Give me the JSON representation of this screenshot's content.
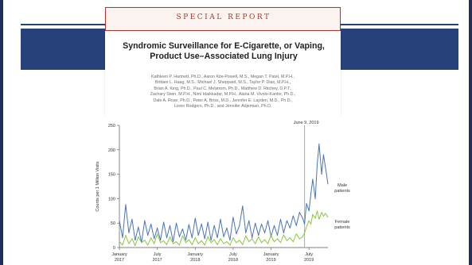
{
  "colors": {
    "slide_band": "#27417a",
    "slide_border": "#1f2f5c",
    "report_accent": "#b8332a",
    "male_series": "#4a73b8",
    "female_series": "#8cc63f",
    "reference_line": "#aaaaaa"
  },
  "article": {
    "section_label": "SPECIAL REPORT",
    "title_line1": "Syndromic Surveillance for E-Cigarette, or Vaping,",
    "title_line2": "Product Use–Associated Lung Injury",
    "authors": [
      "Kathleen P. Hartnett, Ph.D., Aaron Kite-Powell, M.S., Megan T. Patel, M.P.H.,",
      "Brittani L. Haag, M.S., Michael J. Sheppard, M.S., Taylor P. Dias, M.P.H.,",
      "Brian A. King, Ph.D., Paul C. Melstrom, Ph.D., Matthew D. Ritchey, D.P.T.,",
      "Zachary Stein, M.P.H., Nimi Idaikkadar, M.P.H., Alana M. Vivolo-Kantor, Ph.D.,",
      "Dale A. Rose, Ph.D., Peter A. Briss, M.D., Jennifer E. Layden, M.D., Ph.D.,",
      "Loren Rodgers, Ph.D., and Jennifer Adjemian, Ph.D."
    ]
  },
  "chart_data": {
    "type": "line",
    "title": "",
    "xlabel": "",
    "ylabel": "Counts per 1 Million Visits",
    "ylim": [
      0,
      250
    ],
    "yticks": [
      0,
      50,
      100,
      150,
      200,
      250
    ],
    "xlim": [
      0,
      33
    ],
    "x_unit": "months since January 2017",
    "xticks": [
      {
        "x": 0,
        "label1": "January",
        "label2": "2017"
      },
      {
        "x": 6,
        "label1": "July",
        "label2": "2017"
      },
      {
        "x": 12,
        "label1": "January",
        "label2": "2018"
      },
      {
        "x": 18,
        "label1": "July",
        "label2": "2018"
      },
      {
        "x": 24,
        "label1": "January",
        "label2": "2019"
      },
      {
        "x": 30,
        "label1": "July",
        "label2": "2019"
      }
    ],
    "reference_line": {
      "x": 29.3,
      "label": "June 9, 2019"
    },
    "grid": false,
    "series": [
      {
        "name": "Male patients",
        "label_line1": "Male",
        "label_line2": "patients",
        "x": [
          0,
          0.5,
          1,
          1.5,
          2,
          2.5,
          3,
          3.5,
          4,
          4.5,
          5,
          5.5,
          6,
          6.5,
          7,
          7.5,
          8,
          8.5,
          9,
          9.5,
          10,
          10.5,
          11,
          11.5,
          12,
          12.5,
          13,
          13.5,
          14,
          14.5,
          15,
          15.5,
          16,
          16.5,
          17,
          17.5,
          18,
          18.5,
          19,
          19.5,
          20,
          20.5,
          21,
          21.5,
          22,
          22.5,
          23,
          23.5,
          24,
          24.5,
          25,
          25.5,
          26,
          26.5,
          27,
          27.5,
          28,
          28.5,
          29,
          29.3,
          29.6,
          30,
          30.3,
          30.6,
          31,
          31.3,
          31.6,
          32,
          32.3,
          32.6,
          33
        ],
        "y": [
          55,
          20,
          88,
          30,
          58,
          15,
          42,
          10,
          55,
          25,
          48,
          18,
          40,
          15,
          52,
          20,
          45,
          12,
          50,
          22,
          38,
          15,
          47,
          20,
          60,
          25,
          48,
          18,
          52,
          15,
          45,
          20,
          58,
          22,
          40,
          15,
          62,
          28,
          45,
          85,
          30,
          55,
          20,
          50,
          25,
          48,
          30,
          55,
          22,
          45,
          25,
          58,
          30,
          55,
          40,
          65,
          45,
          72,
          60,
          48,
          90,
          75,
          110,
          140,
          100,
          170,
          212,
          150,
          190,
          165,
          130
        ]
      },
      {
        "name": "Female patients",
        "label_line1": "Female",
        "label_line2": "patients",
        "x": [
          0,
          0.5,
          1,
          1.5,
          2,
          2.5,
          3,
          3.5,
          4,
          4.5,
          5,
          5.5,
          6,
          6.5,
          7,
          7.5,
          8,
          8.5,
          9,
          9.5,
          10,
          10.5,
          11,
          11.5,
          12,
          12.5,
          13,
          13.5,
          14,
          14.5,
          15,
          15.5,
          16,
          16.5,
          17,
          17.5,
          18,
          18.5,
          19,
          19.5,
          20,
          20.5,
          21,
          21.5,
          22,
          22.5,
          23,
          23.5,
          24,
          24.5,
          25,
          25.5,
          26,
          26.5,
          27,
          27.5,
          28,
          28.5,
          29,
          29.3,
          29.6,
          30,
          30.3,
          30.6,
          31,
          31.3,
          31.6,
          32,
          32.3,
          32.6,
          33
        ],
        "y": [
          12,
          5,
          25,
          8,
          18,
          4,
          22,
          10,
          15,
          5,
          20,
          8,
          28,
          10,
          14,
          6,
          22,
          8,
          12,
          5,
          24,
          10,
          16,
          6,
          20,
          8,
          14,
          5,
          22,
          10,
          16,
          6,
          18,
          8,
          12,
          5,
          20,
          10,
          15,
          6,
          24,
          12,
          18,
          8,
          22,
          10,
          16,
          8,
          25,
          12,
          18,
          10,
          26,
          14,
          20,
          12,
          28,
          18,
          22,
          30,
          42,
          55,
          48,
          68,
          60,
          75,
          58,
          72,
          64,
          70,
          62
        ]
      }
    ]
  }
}
